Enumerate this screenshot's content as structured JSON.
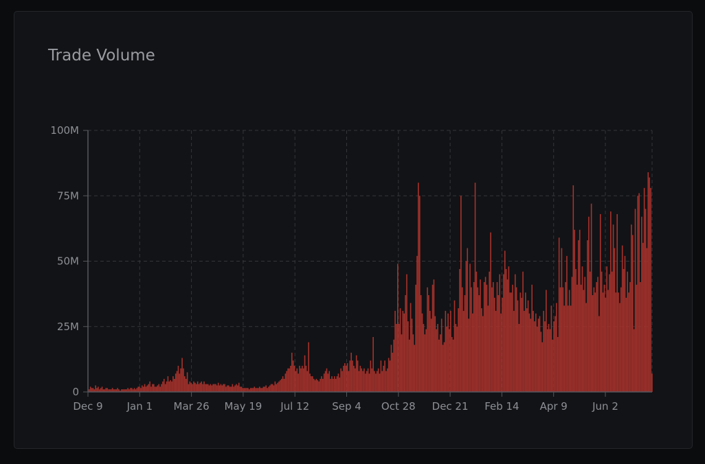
{
  "chart_data": {
    "type": "bar",
    "title": "Trade Volume",
    "xlabel": "",
    "ylabel": "",
    "ylim": [
      0,
      100000000
    ],
    "y_ticks": [
      {
        "value": 0,
        "label": "0"
      },
      {
        "value": 25000000,
        "label": "25M"
      },
      {
        "value": 50000000,
        "label": "50M"
      },
      {
        "value": 75000000,
        "label": "75M"
      },
      {
        "value": 100000000,
        "label": "100M"
      }
    ],
    "x_ticks": [
      "Dec 9",
      "Jan 1",
      "Mar 26",
      "May 19",
      "Jul 12",
      "Sep 4",
      "Oct 28",
      "Dec 21",
      "Feb 14",
      "Apr 9",
      "Jun 2"
    ],
    "grid": true,
    "bar_color": "#a8322c",
    "series": [
      {
        "values": [
          1.0,
          2.0,
          1.5,
          1.5,
          1.0,
          2.5,
          1.5,
          2.0,
          1.0,
          1.5,
          2.0,
          1.0,
          1.0,
          1.5,
          1.5,
          1.0,
          1.0,
          1.0,
          1.5,
          1.0,
          1.0,
          1.0,
          1.5,
          1.0,
          0.5,
          1.0,
          1.0,
          1.0,
          1.0,
          1.0,
          1.5,
          1.0,
          1.5,
          1.5,
          1.0,
          1.5,
          1.0,
          1.5,
          2.0,
          2.0,
          1.5,
          2.5,
          2.0,
          3.0,
          2.0,
          2.5,
          3.0,
          4.0,
          2.0,
          3.0,
          3.0,
          2.0,
          2.0,
          2.5,
          3.0,
          2.0,
          3.0,
          4.0,
          5.0,
          3.0,
          4.0,
          6.0,
          4.0,
          4.5,
          4.0,
          6.0,
          5.0,
          7.0,
          8.0,
          10.0,
          7.0,
          9.0,
          13.0,
          9.0,
          6.0,
          5.0,
          7.5,
          3.0,
          4.0,
          3.5,
          3.0,
          4.0,
          3.5,
          3.0,
          4.0,
          3.0,
          3.5,
          4.0,
          3.0,
          4.0,
          3.0,
          3.0,
          3.0,
          2.5,
          3.0,
          2.5,
          3.0,
          3.0,
          3.0,
          2.5,
          3.5,
          2.5,
          3.0,
          2.5,
          3.0,
          3.0,
          2.0,
          2.5,
          2.5,
          2.0,
          2.0,
          3.0,
          2.0,
          2.5,
          3.0,
          2.5,
          3.5,
          2.0,
          2.0,
          1.5,
          1.5,
          1.5,
          1.5,
          1.5,
          1.0,
          1.5,
          1.5,
          1.5,
          2.0,
          1.5,
          1.5,
          1.5,
          2.0,
          1.5,
          1.5,
          2.0,
          2.0,
          2.5,
          1.5,
          2.0,
          2.5,
          3.0,
          3.0,
          2.5,
          4.0,
          3.0,
          3.5,
          4.0,
          4.5,
          5.0,
          6.0,
          5.0,
          7.0,
          8.0,
          9.0,
          9.0,
          10.0,
          15.0,
          12.0,
          10.0,
          8.0,
          9.0,
          7.0,
          10.0,
          9.0,
          10.0,
          9.0,
          14.0,
          10.0,
          8.0,
          19.0,
          7.0,
          6.0,
          6.0,
          5.0,
          4.5,
          5.0,
          4.5,
          4.0,
          5.0,
          6.0,
          5.0,
          7.0,
          8.0,
          9.0,
          7.0,
          8.0,
          5.0,
          6.0,
          5.0,
          6.0,
          5.0,
          6.0,
          7.0,
          5.5,
          9.0,
          8.0,
          10.0,
          11.0,
          10.0,
          11.0,
          8.0,
          12.0,
          15.0,
          12.0,
          10.0,
          9.0,
          14.0,
          12.0,
          8.0,
          10.0,
          9.0,
          8.0,
          9.0,
          7.0,
          8.0,
          9.0,
          7.0,
          12.0,
          9.0,
          21.0,
          8.0,
          7.0,
          8.0,
          9.0,
          7.0,
          12.0,
          8.0,
          10.0,
          12.0,
          8.0,
          9.0,
          13.0,
          12.0,
          18.0,
          15.0,
          20.0,
          31.0,
          26.0,
          49.0,
          26.0,
          32.0,
          22.0,
          31.0,
          30.0,
          37.0,
          45.0,
          27.0,
          20.0,
          34.0,
          28.0,
          22.0,
          18.0,
          41.0,
          52.0,
          80.0,
          75.0,
          37.0,
          30.0,
          26.0,
          22.0,
          24.0,
          40.0,
          37.0,
          31.0,
          28.0,
          41.0,
          43.0,
          29.0,
          24.0,
          26.0,
          20.0,
          22.0,
          28.0,
          18.0,
          19.0,
          31.0,
          25.0,
          30.0,
          24.0,
          31.0,
          21.0,
          20.0,
          35.0,
          26.0,
          25.0,
          32.0,
          47.0,
          75.0,
          40.0,
          31.0,
          37.0,
          50.0,
          55.0,
          28.0,
          49.0,
          40.0,
          30.0,
          42.0,
          80.0,
          46.0,
          40.0,
          37.0,
          43.0,
          32.0,
          29.0,
          42.0,
          44.0,
          41.0,
          33.0,
          46.0,
          61.0,
          40.0,
          42.0,
          36.0,
          31.0,
          42.0,
          37.0,
          45.0,
          30.0,
          36.0,
          45.0,
          54.0,
          47.0,
          43.0,
          48.0,
          38.0,
          38.0,
          41.0,
          31.0,
          45.0,
          40.0,
          35.0,
          26.0,
          38.0,
          36.0,
          46.0,
          31.0,
          38.0,
          32.0,
          35.0,
          30.0,
          28.0,
          41.0,
          31.0,
          27.0,
          30.0,
          25.0,
          28.0,
          29.0,
          23.0,
          19.0,
          31.0,
          27.0,
          39.0,
          24.0,
          26.0,
          24.0,
          33.0,
          20.0,
          27.0,
          29.0,
          34.0,
          21.0,
          59.0,
          40.0,
          55.0,
          40.0,
          33.0,
          42.0,
          52.0,
          33.0,
          39.0,
          33.0,
          44.0,
          79.0,
          62.0,
          47.0,
          41.0,
          58.0,
          62.0,
          41.0,
          48.0,
          39.0,
          44.0,
          34.0,
          58.0,
          67.0,
          46.0,
          72.0,
          37.0,
          40.0,
          38.0,
          42.0,
          44.0,
          29.0,
          68.0,
          46.0,
          38.0,
          41.0,
          36.0,
          48.0,
          39.0,
          45.0,
          69.0,
          46.0,
          64.0,
          55.0,
          38.0,
          68.0,
          38.0,
          34.0,
          40.0,
          56.0,
          47.0,
          52.0,
          36.0,
          46.0,
          38.0,
          42.0,
          64.0,
          60.0,
          24.0,
          70.0,
          41.0,
          75.0,
          76.0,
          42.0,
          67.0,
          57.0,
          78.0,
          70.0,
          55.0,
          84.0,
          82.0,
          78.0,
          7.0
        ]
      }
    ]
  }
}
